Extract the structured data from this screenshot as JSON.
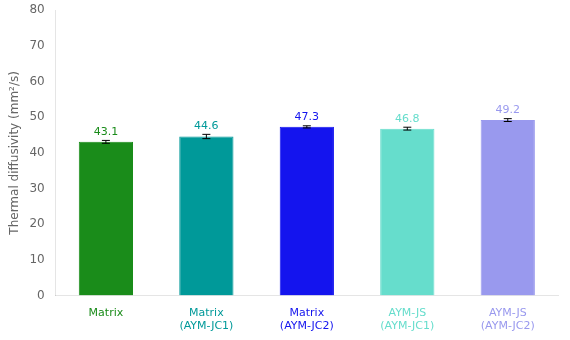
{
  "chart_data": {
    "type": "bar",
    "categories": [
      "Matrix",
      "Matrix\n(AYM-JC1)",
      "Matrix\n(AYM-JC2)",
      "AYM-JS\n(AYM-JC1)",
      "AYM-JS\n(AYM-JC2)"
    ],
    "values": [
      43.1,
      44.6,
      47.3,
      46.8,
      49.2
    ],
    "error_bars": [
      0.4,
      0.6,
      0.3,
      0.4,
      0.4
    ],
    "colors": [
      "#1a8c1a",
      "#009999",
      "#1414ee",
      "#66ddcc",
      "#9999ee"
    ],
    "ylabel": "Thermal diffusivity (mm²/s)",
    "ylim": [
      0,
      80
    ],
    "yticks": [
      0,
      10,
      20,
      30,
      40,
      50,
      60,
      70,
      80
    ],
    "grid": false,
    "data_labels": true
  }
}
